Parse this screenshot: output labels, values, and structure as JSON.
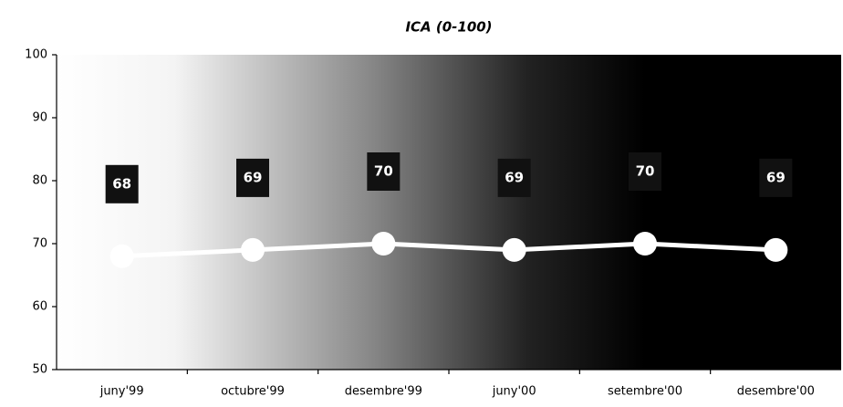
{
  "chart_data": {
    "type": "line",
    "title": "ICA (0-100)",
    "categories": [
      "juny'99",
      "octubre'99",
      "desembre'99",
      "juny'00",
      "setembre'00",
      "desembre'00"
    ],
    "values": [
      68,
      69,
      70,
      69,
      70,
      69
    ],
    "color": "#ffffff",
    "ylim": [
      50,
      100
    ],
    "yticks": [
      50,
      60,
      70,
      80,
      90,
      100
    ],
    "grid": false
  }
}
